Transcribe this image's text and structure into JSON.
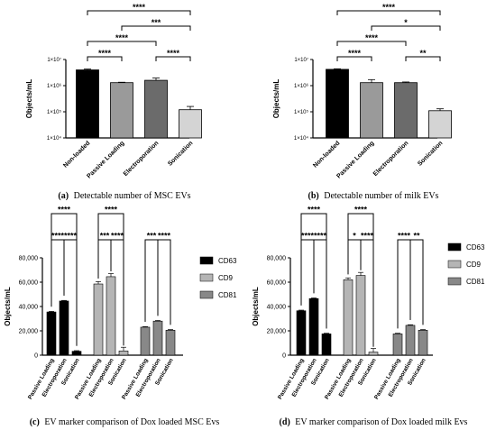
{
  "chart_data": [
    {
      "id": "a",
      "type": "bar",
      "scale": "log",
      "ylabel": "Objects/mL",
      "yticks": [
        "1×10⁴",
        "1×10⁵",
        "1×10⁶",
        "1×10⁷"
      ],
      "ylim": [
        10000,
        10000000
      ],
      "categories": [
        "Non-loaded",
        "Passive Loading",
        "Electroporation",
        "Sonication"
      ],
      "values": [
        4000000,
        1300000,
        1600000,
        120000
      ],
      "errors": [
        300000,
        50000,
        350000,
        40000
      ],
      "colors": [
        "#000000",
        "#9a9a9a",
        "#6b6b6b",
        "#d4d4d4"
      ],
      "sig": [
        {
          "a": 0,
          "b": 3,
          "label": "****"
        },
        {
          "a": 1,
          "b": 3,
          "label": "***"
        },
        {
          "a": 0,
          "b": 2,
          "label": "****"
        },
        {
          "a": 0,
          "b": 1,
          "label": "****"
        },
        {
          "a": 2,
          "b": 3,
          "label": "****"
        }
      ],
      "caption_letter": "(a)",
      "caption": "Detectable number of MSC EVs"
    },
    {
      "id": "b",
      "type": "bar",
      "scale": "log",
      "ylabel": "Objects/mL",
      "yticks": [
        "1×10⁴",
        "1×10⁵",
        "1×10⁶",
        "1×10⁷"
      ],
      "ylim": [
        10000,
        10000000
      ],
      "categories": [
        "Non-loaded",
        "Passive Loading",
        "Electroporation",
        "Sonication"
      ],
      "values": [
        4200000,
        1300000,
        1300000,
        110000
      ],
      "errors": [
        200000,
        400000,
        80000,
        20000
      ],
      "colors": [
        "#000000",
        "#9a9a9a",
        "#6b6b6b",
        "#d4d4d4"
      ],
      "sig": [
        {
          "a": 0,
          "b": 3,
          "label": "****"
        },
        {
          "a": 1,
          "b": 3,
          "label": "*"
        },
        {
          "a": 0,
          "b": 2,
          "label": "****"
        },
        {
          "a": 0,
          "b": 1,
          "label": "****"
        },
        {
          "a": 2,
          "b": 3,
          "label": "**"
        }
      ],
      "caption_letter": "(b)",
      "caption": "Detectable number of milk EVs"
    },
    {
      "id": "c",
      "type": "bar",
      "scale": "linear",
      "ylabel": "Objects/mL",
      "yticks": [
        "0",
        "20,000",
        "40,000",
        "60,000",
        "80,000"
      ],
      "ylim": [
        0,
        80000
      ],
      "categories": [
        "Passive Loading",
        "Electroporation",
        "Sonication"
      ],
      "series": [
        {
          "name": "CD63",
          "values": [
            35500,
            44500,
            3200
          ],
          "errors": [
            500,
            500,
            500
          ]
        },
        {
          "name": "CD9",
          "values": [
            58500,
            64500,
            3500
          ],
          "errors": [
            2000,
            2500,
            3000
          ]
        },
        {
          "name": "CD81",
          "values": [
            23000,
            28000,
            20500
          ],
          "errors": [
            500,
            500,
            500
          ]
        }
      ],
      "colors": [
        "#000000",
        "#b5b5b5",
        "#888888"
      ],
      "sig": [
        {
          "a": 0,
          "b": 2,
          "label": "****",
          "lvl": 0
        },
        {
          "a": 1,
          "b": 2,
          "label": "****",
          "lvl": 1
        },
        {
          "a": 0,
          "b": 1,
          "label": "****",
          "lvl": 2
        },
        {
          "a": 3,
          "b": 5,
          "label": "****",
          "lvl": 0
        },
        {
          "a": 4,
          "b": 5,
          "label": "****",
          "lvl": 1
        },
        {
          "a": 3,
          "b": 4,
          "label": "***",
          "lvl": 2
        },
        {
          "a": 7,
          "b": 8,
          "label": "****",
          "lvl": 1
        },
        {
          "a": 6,
          "b": 7,
          "label": "***",
          "lvl": 2
        }
      ],
      "caption_letter": "(c)",
      "caption": "EV marker comparison of Dox loaded MSC Evs"
    },
    {
      "id": "d",
      "type": "bar",
      "scale": "linear",
      "ylabel": "Objects/mL",
      "yticks": [
        "0",
        "20,000",
        "40,000",
        "60,000",
        "80,000"
      ],
      "ylim": [
        0,
        80000
      ],
      "categories": [
        "Passive Loading",
        "Electroporation",
        "Sonication"
      ],
      "series": [
        {
          "name": "CD63",
          "values": [
            36500,
            46500,
            17500
          ],
          "errors": [
            500,
            500,
            500
          ]
        },
        {
          "name": "CD9",
          "values": [
            62000,
            65500,
            2500
          ],
          "errors": [
            1500,
            2500,
            3000
          ]
        },
        {
          "name": "CD81",
          "values": [
            17500,
            24500,
            20500
          ],
          "errors": [
            500,
            500,
            500
          ]
        }
      ],
      "colors": [
        "#000000",
        "#b5b5b5",
        "#888888"
      ],
      "sig": [
        {
          "a": 0,
          "b": 2,
          "label": "****",
          "lvl": 0
        },
        {
          "a": 1,
          "b": 2,
          "label": "****",
          "lvl": 1
        },
        {
          "a": 0,
          "b": 1,
          "label": "****",
          "lvl": 2
        },
        {
          "a": 3,
          "b": 5,
          "label": "****",
          "lvl": 0
        },
        {
          "a": 4,
          "b": 5,
          "label": "****",
          "lvl": 1
        },
        {
          "a": 3,
          "b": 4,
          "label": "*",
          "lvl": 2
        },
        {
          "a": 7,
          "b": 8,
          "label": "**",
          "lvl": 1
        },
        {
          "a": 6,
          "b": 7,
          "label": "****",
          "lvl": 2
        }
      ],
      "caption_letter": "(d)",
      "caption": "EV marker comparison of Dox loaded milk Evs"
    }
  ]
}
